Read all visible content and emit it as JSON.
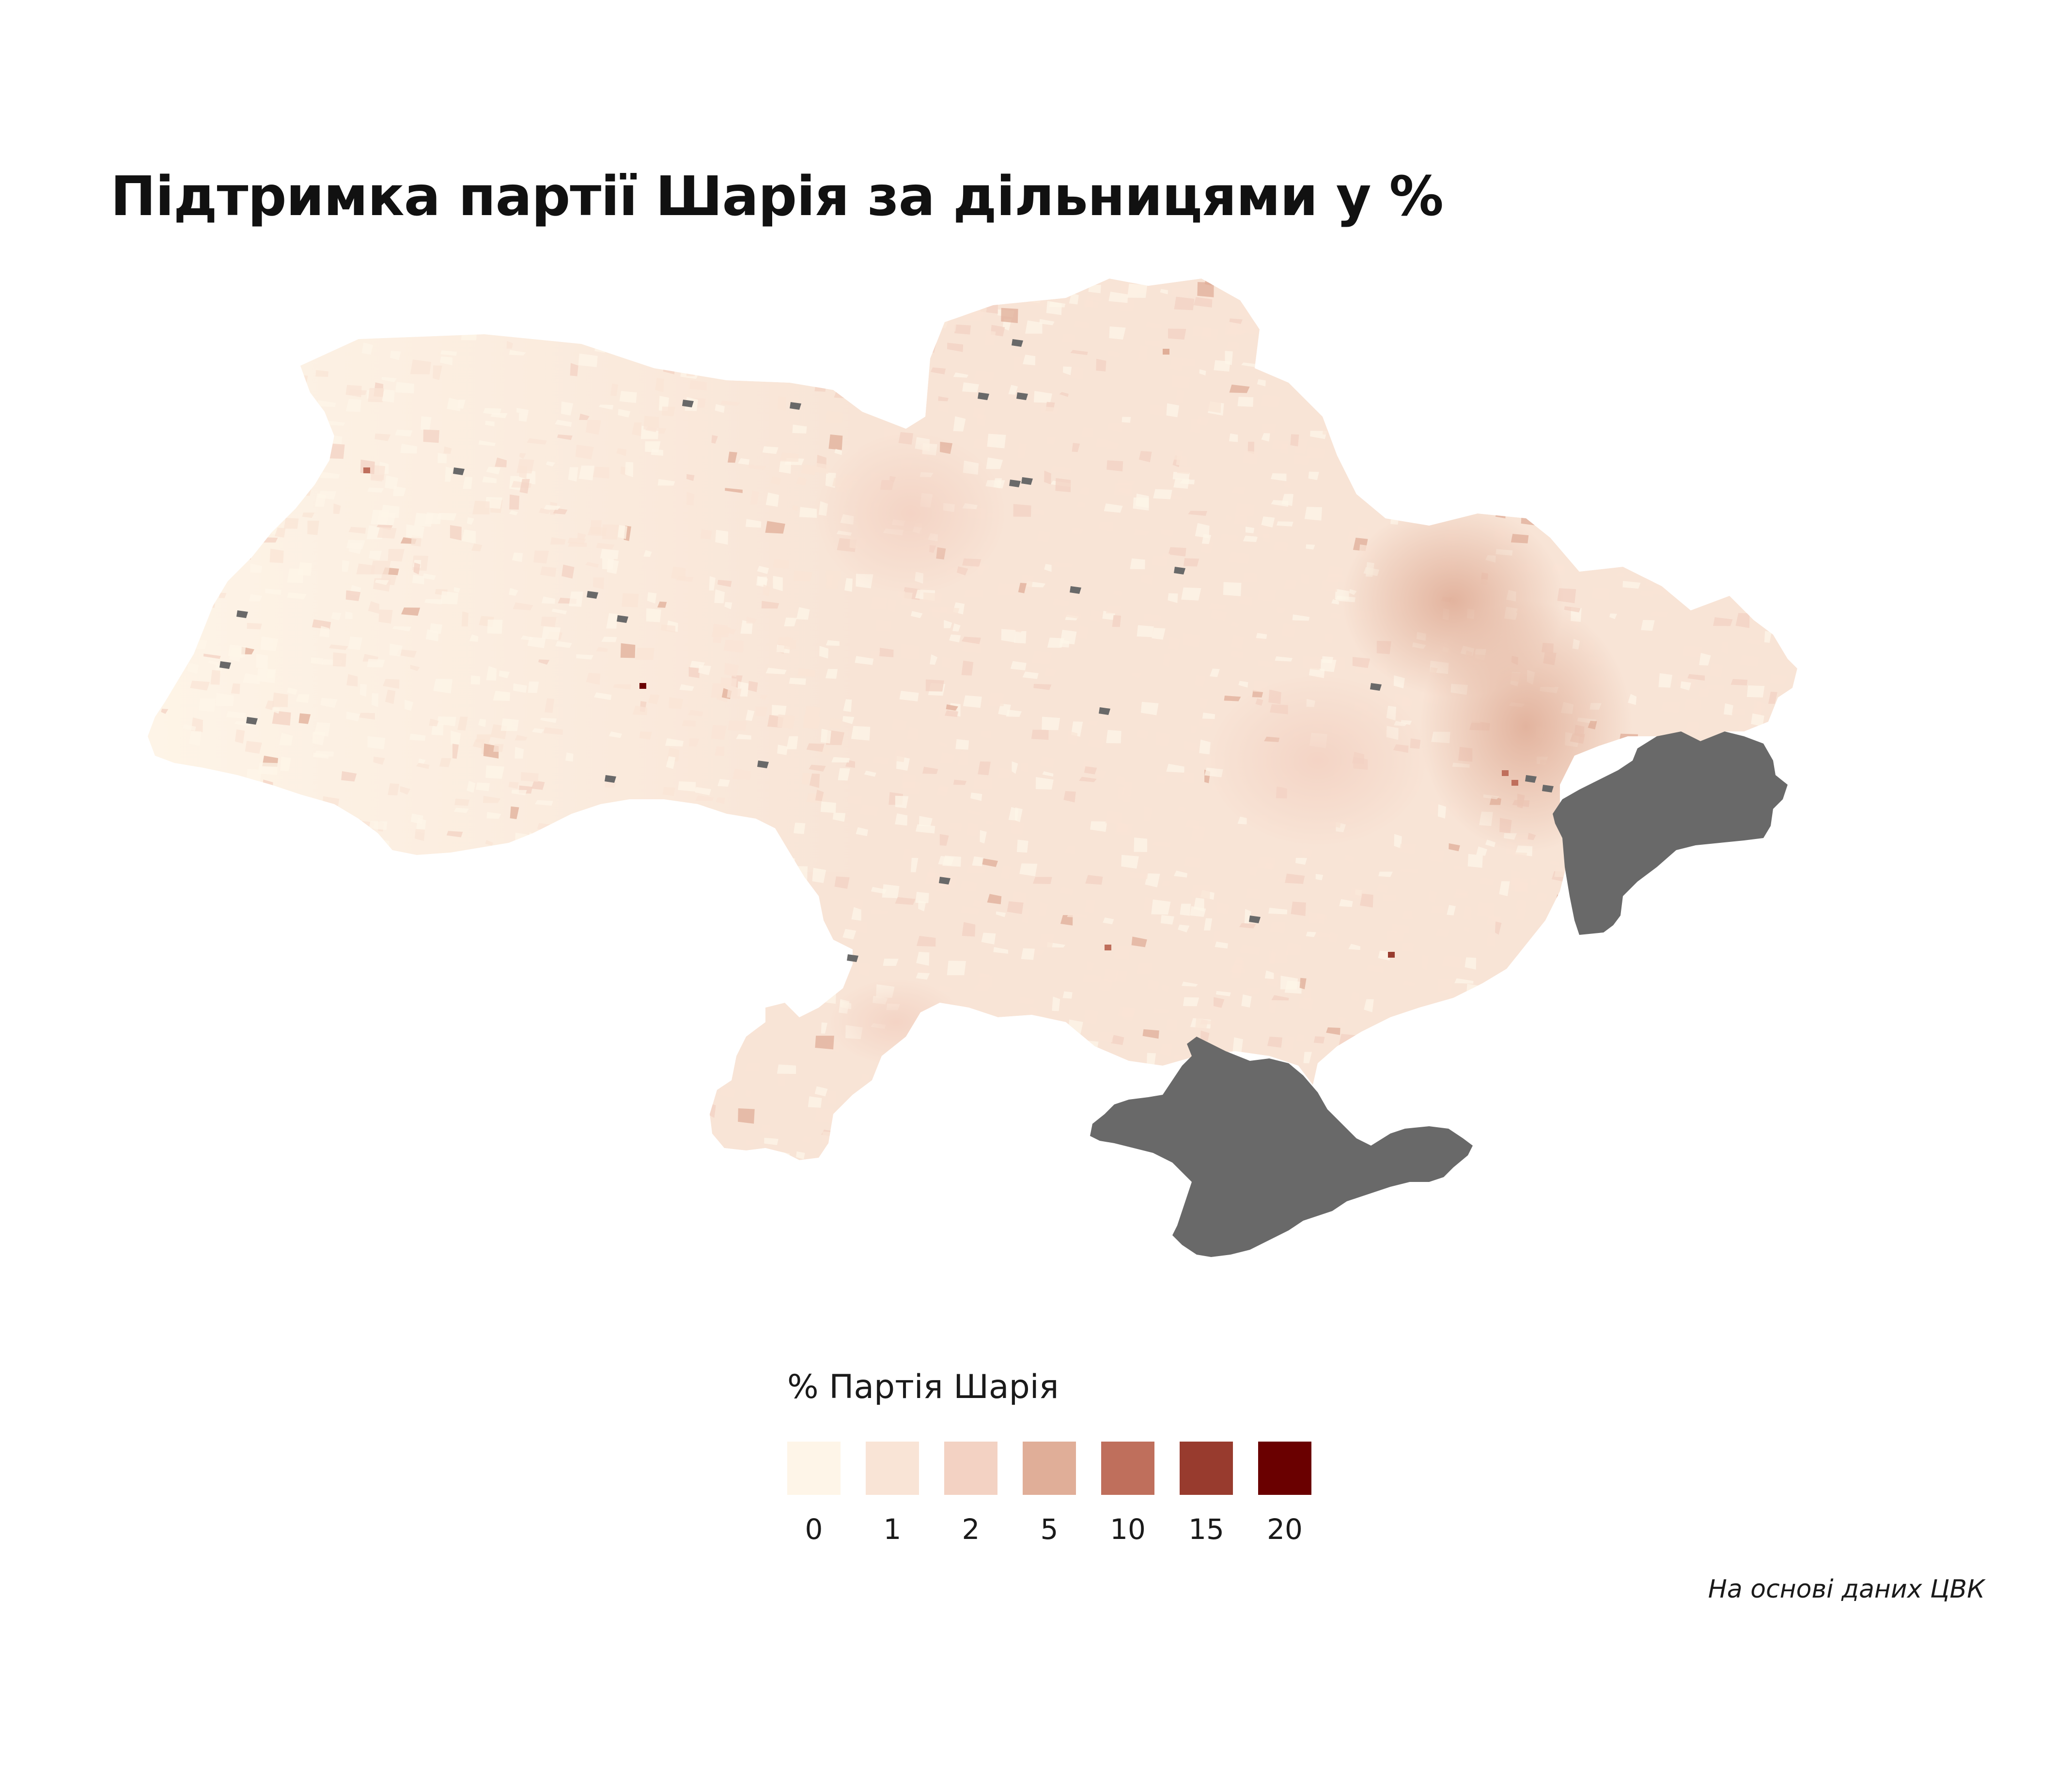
{
  "title": "Підтримка партії Шарія за дільницями у %",
  "legend": {
    "title": "% Партія Шарія",
    "items": [
      {
        "label": "0",
        "color": "#fef5e8"
      },
      {
        "label": "1",
        "color": "#f9e4d6"
      },
      {
        "label": "2",
        "color": "#f3d2c3"
      },
      {
        "label": "5",
        "color": "#e0ae98"
      },
      {
        "label": "10",
        "color": "#bf6f5c"
      },
      {
        "label": "15",
        "color": "#983b2e"
      },
      {
        "label": "20",
        "color": "#6a0000"
      }
    ]
  },
  "colors": {
    "territory_base": "#f8e4d6",
    "no_data": "#696969"
  },
  "source": "На основі даних ЦВК"
}
